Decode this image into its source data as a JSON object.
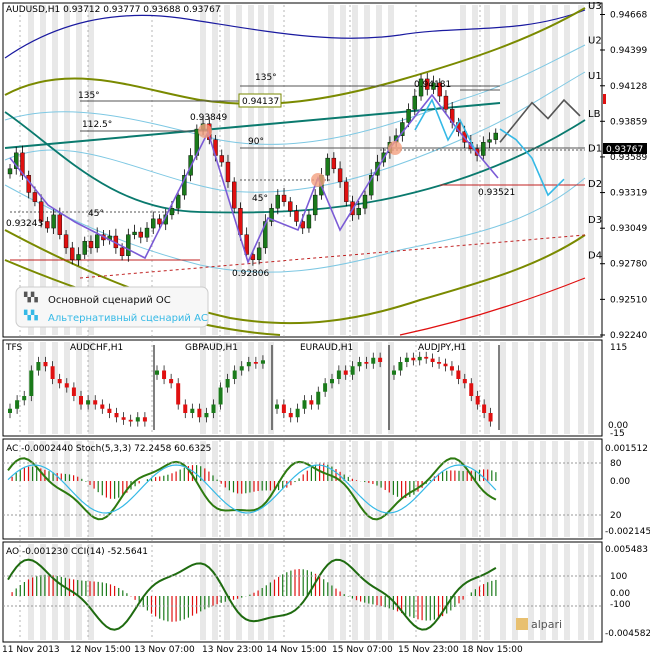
{
  "colors": {
    "bull": "#1a7a1a",
    "bear": "#e01010",
    "teal": "#0a7a6e",
    "olive": "#7a8a00",
    "navy": "#1a1aa0",
    "light": "#7ec8e3",
    "purple": "#7b5bd6",
    "gray": "#555555",
    "alt": "#35b9e6",
    "stripe": "#d8d8d8"
  },
  "main": {
    "header": "AUDUSD,H1  0.93712 0.93777 0.93688 0.93767",
    "price_ticks": [
      "0.94668",
      "0.94399",
      "0.94128",
      "0.93859",
      "0.93589",
      "0.93319",
      "0.93049",
      "0.92780",
      "0.92510",
      "0.92240"
    ],
    "levels": [
      "U3",
      "U2",
      "U1",
      "LB",
      "D1",
      "D2",
      "D3",
      "D4"
    ],
    "current_price": "0.93767",
    "annotations": {
      "a1": "0.93849",
      "a2": "0.94181",
      "a3": "0.94137",
      "a4": "0.93243",
      "a5": "0.92806",
      "a6": "0.93521",
      "g135a": "135°",
      "g135b": "135°",
      "g112": "112.5°",
      "g90": "90°",
      "g45a": "45°",
      "g45b": "45°"
    },
    "legend": {
      "main_scenario": "Основной сценарий ОС",
      "alt_scenario": "Альтернативный сценарий АС"
    }
  },
  "panel1": {
    "header": "TFS",
    "pairs": [
      "AUDCHF,H1",
      "GBPAUD,H1",
      "EURAUD,H1",
      "AUDJPY,H1"
    ],
    "ticks": [
      "115",
      "0.00",
      "-15"
    ]
  },
  "panel2": {
    "header": "AC -0.0002440  Stoch(5,3,3) 72.2458 60.6325",
    "ticks": [
      "0.001512",
      "80",
      "0.00",
      "20",
      "-0.002145"
    ]
  },
  "panel3": {
    "header": "AO -0.001230  CCI(14) -52.5641",
    "ticks": [
      "0.005483",
      "100",
      "0.00",
      "-100",
      "-0.004582"
    ],
    "logo": "alpari"
  },
  "time_axis": [
    "11 Nov 2013",
    "12 Nov 15:00",
    "13 Nov 07:00",
    "13 Nov 23:00",
    "14 Nov 15:00",
    "15 Nov 07:00",
    "15 Nov 23:00",
    "18 Nov 15:00"
  ],
  "chart_data": {
    "type": "candlestick",
    "symbol": "AUDUSD",
    "timeframe": "H1",
    "ylim": [
      0.9224,
      0.9474
    ],
    "price_ticks": [
      0.94668,
      0.94399,
      0.94128,
      0.93859,
      0.93589,
      0.93319,
      0.93049,
      0.9278,
      0.9251,
      0.9224
    ],
    "close": [
      0.935,
      0.9362,
      0.9345,
      0.9332,
      0.9325,
      0.931,
      0.9305,
      0.9315,
      0.93,
      0.929,
      0.9281,
      0.9285,
      0.9295,
      0.929,
      0.93,
      0.9296,
      0.9299,
      0.929,
      0.9284,
      0.93,
      0.9302,
      0.9298,
      0.9305,
      0.9312,
      0.9308,
      0.9315,
      0.932,
      0.933,
      0.9345,
      0.936,
      0.938,
      0.9384,
      0.9372,
      0.936,
      0.9355,
      0.934,
      0.932,
      0.93,
      0.9285,
      0.9281,
      0.929,
      0.931,
      0.932,
      0.933,
      0.9325,
      0.9318,
      0.931,
      0.9305,
      0.9315,
      0.933,
      0.9345,
      0.9358,
      0.935,
      0.934,
      0.9325,
      0.9315,
      0.932,
      0.933,
      0.9345,
      0.9355,
      0.9362,
      0.937,
      0.9375,
      0.9385,
      0.9395,
      0.9405,
      0.9418,
      0.941,
      0.9415,
      0.9405,
      0.9395,
      0.9385,
      0.9378,
      0.937,
      0.9365,
      0.936,
      0.937,
      0.9372,
      0.9377
    ],
    "main_scenario": [
      0.937,
      0.9385,
      0.94,
      0.9388,
      0.9402,
      0.939
    ],
    "alt_scenario": [
      0.938,
      0.9372,
      0.9358,
      0.933,
      0.9342
    ],
    "levels": {
      "U3": 0.9474,
      "U2": 0.9448,
      "U1": 0.9421,
      "LB": 0.9392,
      "D1": 0.9366,
      "D2": 0.9339,
      "D3": 0.9312,
      "D4": 0.9285
    }
  }
}
